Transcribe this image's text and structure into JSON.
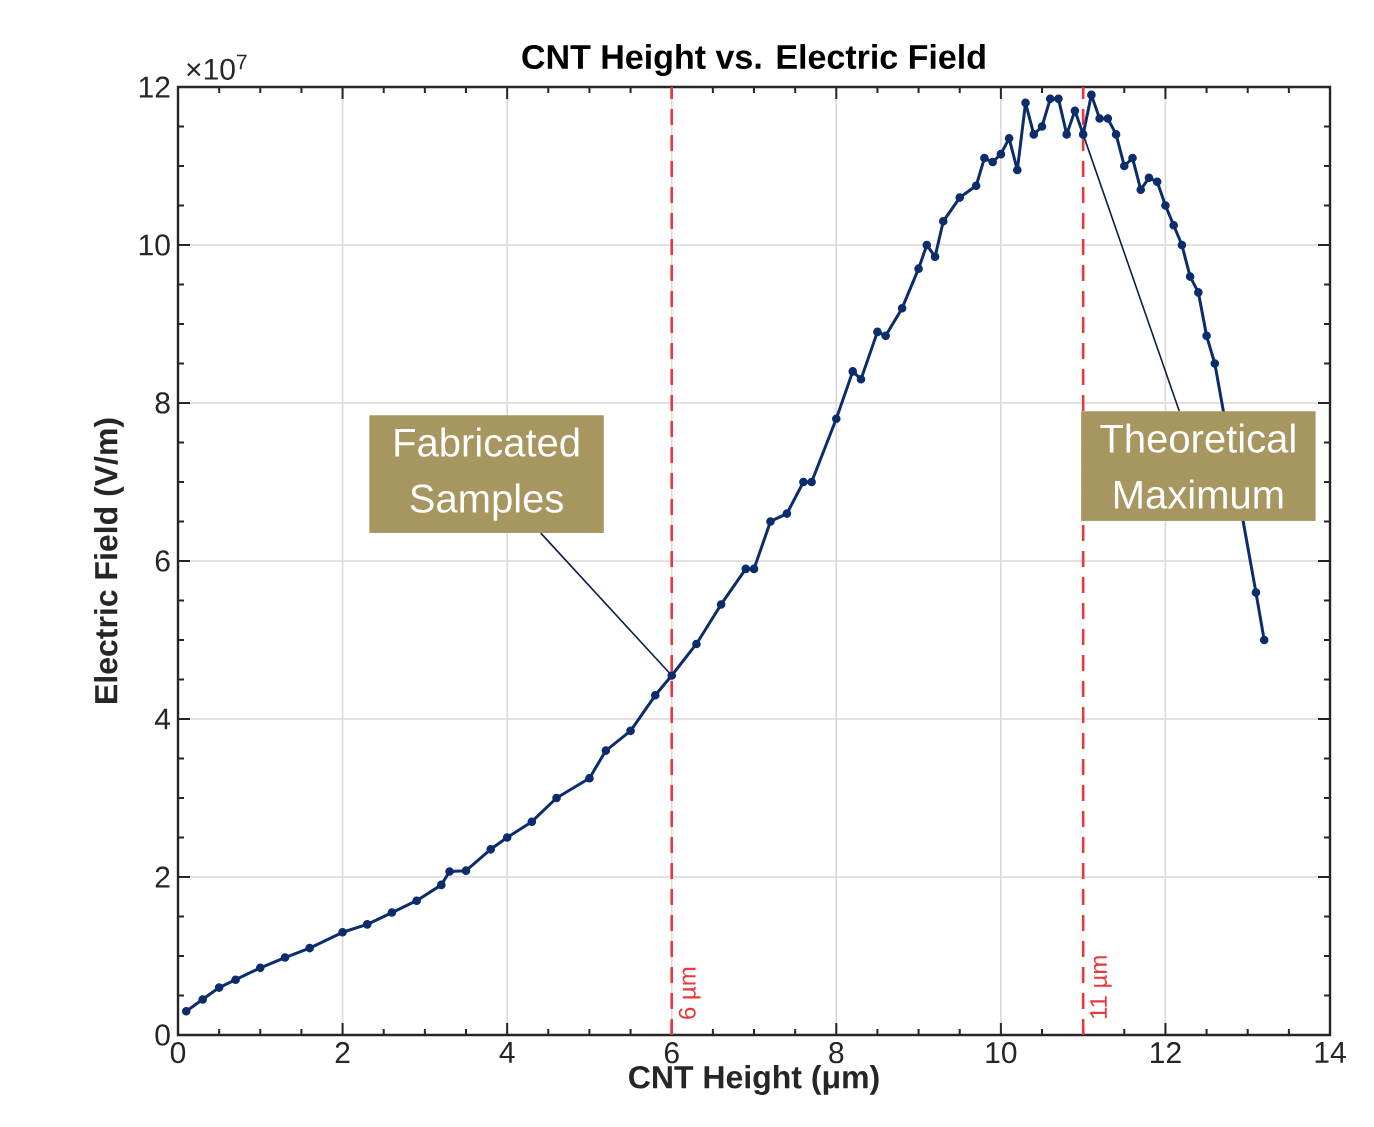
{
  "chart_data": {
    "type": "line",
    "title": "CNT Height vs. Electric Field",
    "xlabel": "CNT Height (μm)",
    "ylabel": "Electric Field (V/m)",
    "xlim": [
      0,
      14
    ],
    "ylim": [
      0,
      12
    ],
    "xticks": [
      0,
      2,
      4,
      6,
      8,
      10,
      12,
      14
    ],
    "yticks": [
      0,
      2,
      4,
      6,
      8,
      10,
      12
    ],
    "grid": true,
    "marker": "circle",
    "line_style": "solid",
    "series": [
      {
        "color": "#0b2d6b",
        "x": [
          0.1,
          0.3,
          0.5,
          0.7,
          1.0,
          1.3,
          1.6,
          2.0,
          2.3,
          2.6,
          2.9,
          3.2,
          3.3,
          3.5,
          3.8,
          4.0,
          4.3,
          4.6,
          5.0,
          5.2,
          5.5,
          5.8,
          6.0,
          6.3,
          6.6,
          6.9,
          7.0,
          7.2,
          7.4,
          7.6,
          7.7,
          8.0,
          8.2,
          8.3,
          8.5,
          8.6,
          8.8,
          9.0,
          9.1,
          9.2,
          9.3,
          9.5,
          9.7,
          9.8,
          9.9,
          10.0,
          10.1,
          10.2,
          10.3,
          10.4,
          10.5,
          10.6,
          10.7,
          10.8,
          10.9,
          11.0,
          11.1,
          11.2,
          11.3,
          11.4,
          11.5,
          11.6,
          11.7,
          11.8,
          11.9,
          12.0,
          12.1,
          12.2,
          12.3,
          12.4,
          12.5,
          12.6,
          13.1,
          13.2
        ],
        "values": [
          0.3,
          0.45,
          0.6,
          0.7,
          0.85,
          0.98,
          1.1,
          1.3,
          1.4,
          1.55,
          1.7,
          1.9,
          2.07,
          2.08,
          2.35,
          2.5,
          2.7,
          3.0,
          3.25,
          3.6,
          3.85,
          4.3,
          4.55,
          4.95,
          5.45,
          5.9,
          5.9,
          6.5,
          6.6,
          7.0,
          7.0,
          7.8,
          8.4,
          8.3,
          8.9,
          8.85,
          9.2,
          9.7,
          10.0,
          9.85,
          10.3,
          10.6,
          10.75,
          11.1,
          11.05,
          11.15,
          11.35,
          10.95,
          11.8,
          11.4,
          11.5,
          11.85,
          11.85,
          11.4,
          11.7,
          11.4,
          11.9,
          11.6,
          11.6,
          11.4,
          11.0,
          11.1,
          10.7,
          10.85,
          10.8,
          10.5,
          10.25,
          10.0,
          9.6,
          9.4,
          8.85,
          8.5,
          5.6,
          5.0
        ]
      }
    ],
    "ref_lines": [
      {
        "axis": "x",
        "value": 6,
        "label": "6 µm",
        "color": "#e8383d",
        "line_style": "dashed"
      },
      {
        "axis": "x",
        "value": 11,
        "label": "11 µm",
        "color": "#e8383d",
        "line_style": "dashed"
      }
    ],
    "annotations": [
      "×10$^{7}$",
      {
        "text": "Fabricated Samples",
        "x": 6,
        "y": 4.55
      },
      {
        "text": "Theoretical Maximum",
        "x": 11,
        "y": 11.4
      }
    ]
  }
}
